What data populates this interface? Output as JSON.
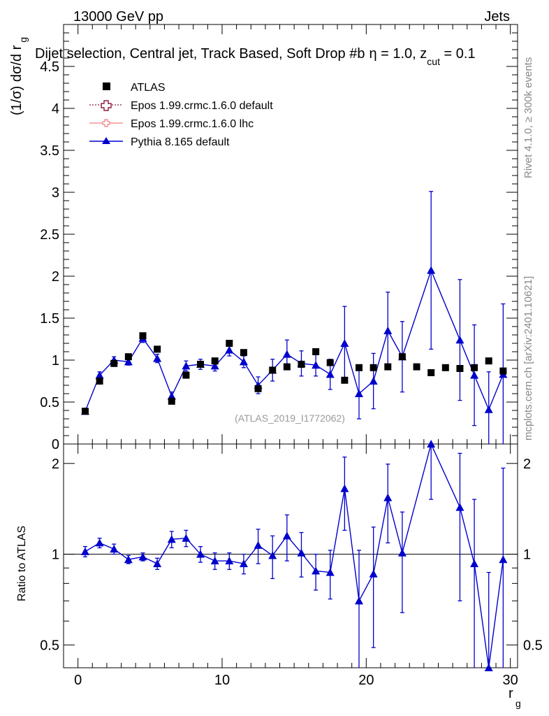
{
  "header": {
    "left": "13000 GeV pp",
    "right": "Jets"
  },
  "side_texts": {
    "rivet": "Rivet 4.1.0, ≥ 300k events",
    "mcplots": "mcplots.cern.ch [arXiv:2401.10621]"
  },
  "colors": {
    "atlas": "#000000",
    "epos_default": "#8b1a3b",
    "epos_lhc": "#f08080",
    "pythia": "#0000cd"
  },
  "chart_data": [
    {
      "type": "scatter",
      "title_main": "Dijet selection, Central jet, Track Based, Soft Drop #b",
      "title_eta": "η = 1.0, z",
      "title_cut": "cut",
      "title_tail": " = 0.1",
      "ylabel": "(1/σ) dσ/d r",
      "ylabel_sub": "g",
      "watermark": "(ATLAS_2019_I1772062)",
      "xlim": [
        -1,
        30.5
      ],
      "ylim": [
        0,
        5.0
      ],
      "yticks": [
        0,
        0.5,
        1,
        1.5,
        2,
        2.5,
        3,
        3.5,
        4,
        4.5
      ],
      "ytick_labels": [
        "0",
        "0.5",
        "1",
        "1.5",
        "2",
        "2.5",
        "3",
        "3.5",
        "4",
        "4.5"
      ],
      "legend": [
        {
          "key": "atlas",
          "label": "ATLAS"
        },
        {
          "key": "epos_default",
          "label": "Epos 1.99.crmc.1.6.0 default"
        },
        {
          "key": "epos_lhc",
          "label": "Epos 1.99.crmc.1.6.0 lhc"
        },
        {
          "key": "pythia",
          "label": "Pythia 8.165 default"
        }
      ],
      "x": [
        0.5,
        1.5,
        2.5,
        3.5,
        4.5,
        5.5,
        6.5,
        7.5,
        8.5,
        9.5,
        10.5,
        11.5,
        12.5,
        13.5,
        14.5,
        15.5,
        16.5,
        17.5,
        18.5,
        19.5,
        20.5,
        21.5,
        22.5,
        23.5,
        24.5,
        25.5,
        26.5,
        27.5,
        28.5,
        29.5
      ],
      "series": [
        {
          "name": "ATLAS",
          "values": [
            0.39,
            0.75,
            0.96,
            1.04,
            1.29,
            1.13,
            0.51,
            0.82,
            0.95,
            0.99,
            1.2,
            1.09,
            0.66,
            0.88,
            0.92,
            0.95,
            1.1,
            0.97,
            0.76,
            0.91,
            0.91,
            0.92,
            1.04,
            0.92,
            0.85,
            0.91,
            0.9,
            0.91,
            0.99,
            0.87
          ]
        },
        {
          "name": "Pythia 8.165 default",
          "values": [
            0.39,
            0.82,
            1.0,
            0.98,
            1.26,
            1.02,
            0.57,
            0.93,
            0.95,
            0.93,
            1.12,
            0.98,
            0.7,
            0.88,
            1.07,
            0.96,
            0.94,
            0.83,
            1.2,
            0.6,
            0.75,
            1.35,
            1.04,
            null,
            2.07,
            null,
            1.24,
            0.82,
            0.41,
            0.83
          ],
          "errors": [
            0.02,
            0.04,
            0.04,
            0.04,
            0.05,
            0.05,
            0.05,
            0.06,
            0.06,
            0.06,
            0.07,
            0.07,
            0.1,
            0.13,
            0.17,
            0.15,
            0.13,
            0.18,
            0.44,
            0.3,
            0.33,
            0.46,
            0.42,
            null,
            0.94,
            null,
            0.72,
            0.6,
            0.45,
            0.84
          ]
        }
      ]
    },
    {
      "type": "scatter",
      "ylabel": "Ratio to ATLAS",
      "xlabel": "r",
      "xlabel_sub": "g",
      "xlim": [
        -1,
        30.5
      ],
      "ylim": [
        0.42,
        2.32
      ],
      "yscale": "log",
      "yticks": [
        0.5,
        1,
        2
      ],
      "ytick_labels": [
        "0.5",
        "1",
        "2"
      ],
      "xticks": [
        0,
        10,
        20,
        30
      ],
      "xtick_labels": [
        "0",
        "10",
        "20",
        "30"
      ],
      "x": [
        0.5,
        1.5,
        2.5,
        3.5,
        4.5,
        5.5,
        6.5,
        7.5,
        8.5,
        9.5,
        10.5,
        11.5,
        12.5,
        13.5,
        14.5,
        15.5,
        16.5,
        17.5,
        18.5,
        19.5,
        20.5,
        21.5,
        22.5,
        23.5,
        24.5,
        25.5,
        26.5,
        27.5,
        28.5,
        29.5
      ],
      "series": [
        {
          "name": "Pythia 8.165 default / ATLAS",
          "values": [
            1.02,
            1.09,
            1.04,
            0.96,
            0.98,
            0.93,
            1.12,
            1.13,
            1.0,
            0.95,
            0.95,
            0.93,
            1.07,
            0.99,
            1.15,
            1.01,
            0.88,
            0.87,
            1.65,
            0.7,
            0.86,
            1.54,
            1.01,
            null,
            2.32,
            null,
            1.43,
            0.93,
            0.4,
            0.96
          ],
          "errors": [
            0.04,
            0.04,
            0.04,
            0.03,
            0.03,
            0.04,
            0.07,
            0.07,
            0.06,
            0.06,
            0.06,
            0.07,
            0.14,
            0.16,
            0.2,
            0.17,
            0.12,
            0.16,
            0.45,
            0.33,
            0.37,
            0.45,
            0.37,
            null,
            0.8,
            null,
            0.73,
            0.59,
            0.47,
            0.97
          ]
        }
      ]
    }
  ]
}
